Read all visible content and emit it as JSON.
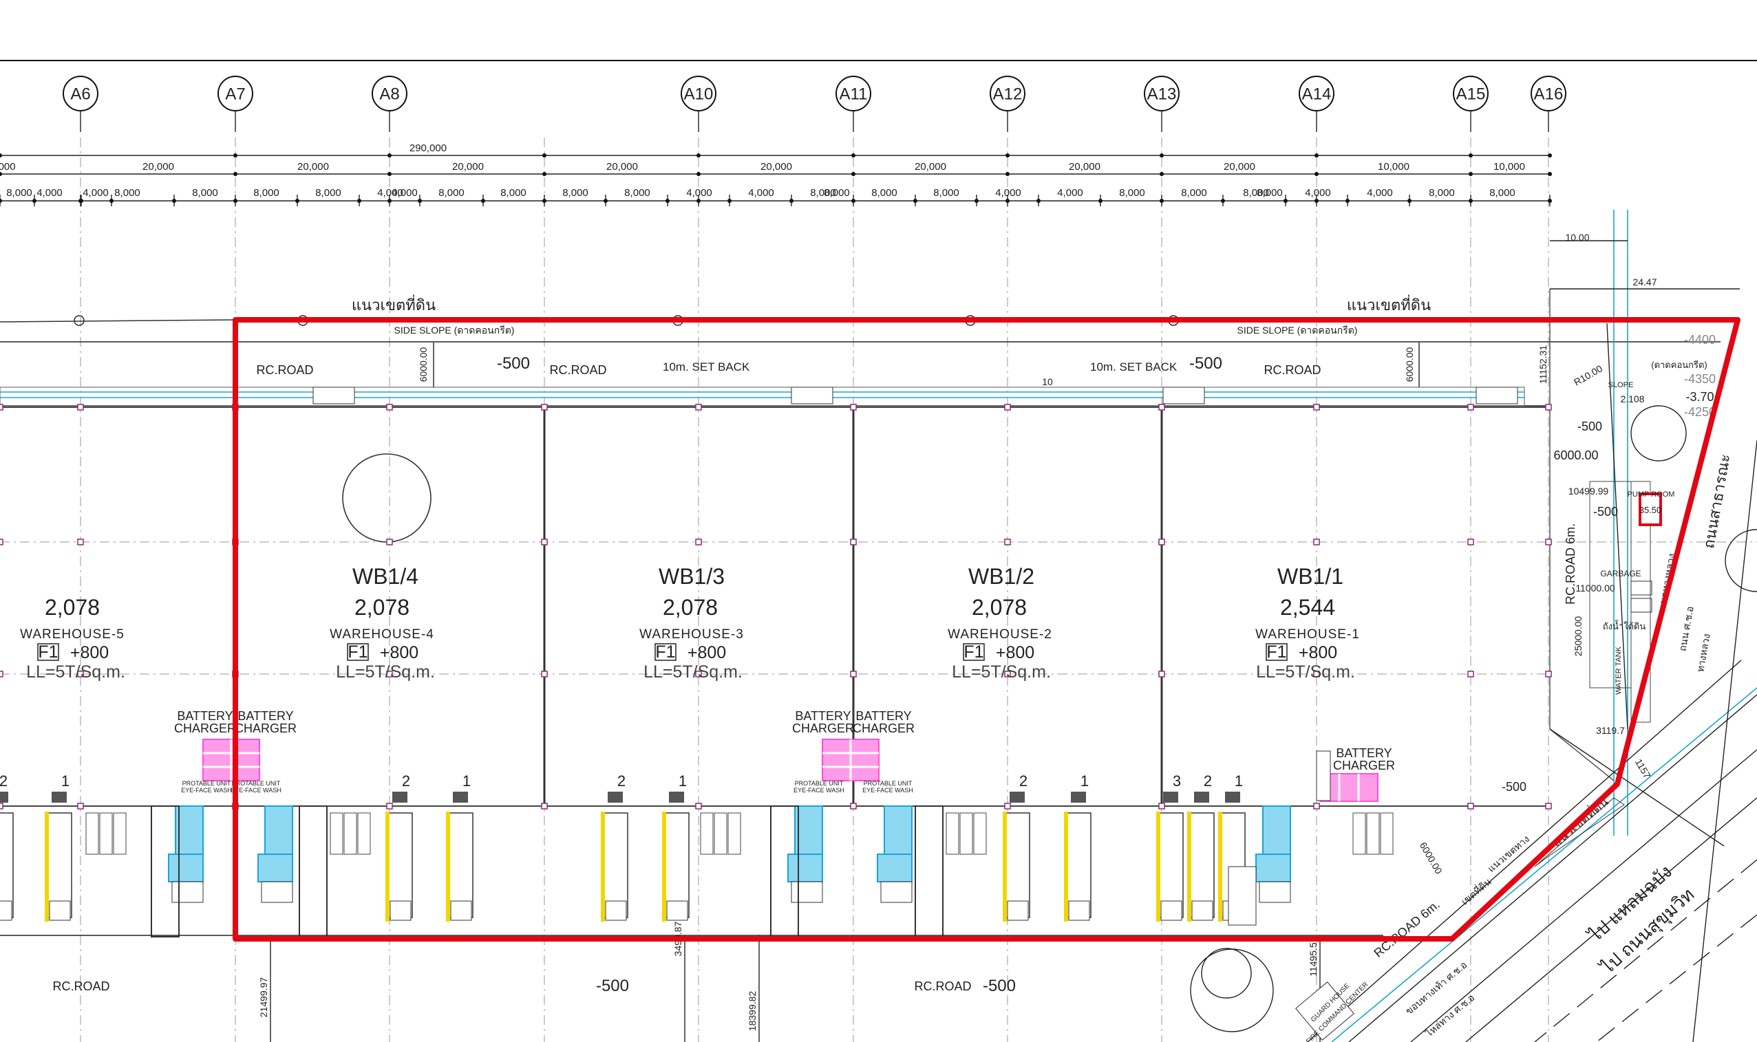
{
  "axes": [
    "A6",
    "A7",
    "A8",
    "A10",
    "A11",
    "A12",
    "A13",
    "A14",
    "A15",
    "A16"
  ],
  "overall_dimension": "290,000",
  "bay_dimensions": ",000|20,000|20,000|20,000|20,000|20,000|20,000|20,000|20,000|20,000|10,000",
  "bay_labels": [
    ",000",
    "20,000",
    "20,000",
    "20,000",
    "20,000",
    "20,000",
    "20,000",
    "20,000",
    "20,000",
    "10,000"
  ],
  "sub_labels": [
    "8,000",
    "4,000",
    "4,000",
    "8,000",
    "8,000",
    "8,000",
    "8,000",
    "4,000",
    "4,000",
    "8,000",
    "8,000",
    "8,000",
    "8,000",
    "4,000",
    "4,000",
    "8,000",
    "8,000",
    "8,000",
    "8,000",
    "4,000",
    "4,000",
    "8,000",
    "8,000",
    "8,000",
    "8,000",
    "4,000",
    "4,000",
    "8,000",
    "8,000"
  ],
  "boundary_labels": {
    "left": "แนวเขตที่ดิน",
    "right": "แนวเขตที่ดิน",
    "diagonal": "แนวเขตที่ดิน"
  },
  "side_slope_left": "SIDE SLOPE (ดาดคอนกรีต)",
  "side_slope_right": "SIDE SLOPE (ดาดคอนกรีต)",
  "roads": {
    "rc_road_1": "RC.ROAD",
    "rc_road_2": "RC.ROAD",
    "rc_road_3": "RC.ROAD",
    "rc_road_bottom_left": "RC.ROAD",
    "rc_road_bottom_mid": "RC.ROAD",
    "rc_road_6m": "RC.ROAD 6m.",
    "rc_road_6m_diag": "RC.ROAD 6m."
  },
  "levels": {
    "top_mid": "-500",
    "top_right": "-500",
    "right_1": "-500",
    "right_2": "-500",
    "right_3": "-500",
    "bottom_mid": "-500",
    "bottom_right": "-500",
    "el_4400": "-4400",
    "el_4350": "-4350",
    "el_370": "-3.70",
    "el_4250": "-4250"
  },
  "setback_1": "10m. SET BACK",
  "setback_2": "10m. SET BACK",
  "setback_num": "10",
  "dims_misc": {
    "d6000_left": "6000.00",
    "d6000_right": "6000.00",
    "d11152": "11152.31",
    "d10": "10.00",
    "d2447": "24.47",
    "r10": "R10.00",
    "d6000_h": "6000.00",
    "d10499": "10499.99",
    "d11000": "11000.00",
    "d25000": "25000.00",
    "d3119": "3119.7",
    "d2108": "2.108",
    "d3550": "35.50",
    "d21499": "21499.97",
    "d3499": "3499.87",
    "d18399": "18399.82",
    "d11495": "11495.5",
    "d1157": "1157",
    "d6000_diag": "6000.00",
    "slope": "SLOPE",
    "slope_side": "(ดาดคอนกรีต)"
  },
  "warehouses": [
    {
      "code": "",
      "area": "2,078",
      "name": "WAREHOUSE-5",
      "level": "F1",
      "level_value": "+800",
      "load": "LL=5T/Sq.m."
    },
    {
      "code": "WB1/4",
      "area": "2,078",
      "name": "WAREHOUSE-4",
      "level": "F1",
      "level_value": "+800",
      "load": "LL=5T/Sq.m."
    },
    {
      "code": "WB1/3",
      "area": "2,078",
      "name": "WAREHOUSE-3",
      "level": "F1",
      "level_value": "+800",
      "load": "LL=5T/Sq.m."
    },
    {
      "code": "WB1/2",
      "area": "2,078",
      "name": "WAREHOUSE-2",
      "level": "F1",
      "level_value": "+800",
      "load": "LL=5T/Sq.m."
    },
    {
      "code": "WB1/1",
      "area": "2,544",
      "name": "WAREHOUSE-1",
      "level": "F1",
      "level_value": "+800",
      "load": "LL=5T/Sq.m."
    }
  ],
  "battery_charger": {
    "line1": "BATTERY",
    "line2": "CHARGER"
  },
  "eye_face": {
    "line1": "PROTABLE UNIT",
    "line2": "EYE-FACE WASH"
  },
  "dock_numbers": [
    "2",
    "1",
    "2",
    "1",
    "2",
    "1",
    "2",
    "1",
    "3",
    "2",
    "1"
  ],
  "right_labels": {
    "pump_room": "PUMP ROOM",
    "garbage": "GARBAGE",
    "water_tank_th": "ถังน้ำใต้ดิน",
    "water_tank": "WATER TANK",
    "guard_house": "GUARD HOUSE",
    "fire_center": "FIRE COMMAND CENTER",
    "road_th_1": "ถนนสาธารณะ",
    "road_th_2": "ไป แหลมฉบัง",
    "road_th_3": "ไป ถนนสุขุมวิท",
    "road_th_4": "ถนน ศ.ช.อ",
    "road_th_5": "ทางหลวง",
    "road_th_6": "เขตทางหลวง",
    "road_th_7": "ไหล่ทาง ศ.ช.อ",
    "road_th_8": "ขอบทางเท้า ศ.ช.อ",
    "road_th_9": "แนวเขตทาง",
    "road_th_10": "เขตที่ดิน"
  },
  "colors": {
    "site_outline": "#e30613",
    "battery_zone": "#ff4fd8",
    "equipment": "#1aa3d9",
    "yellow_lane": "#f2d600",
    "utility": "#19a6c9"
  }
}
